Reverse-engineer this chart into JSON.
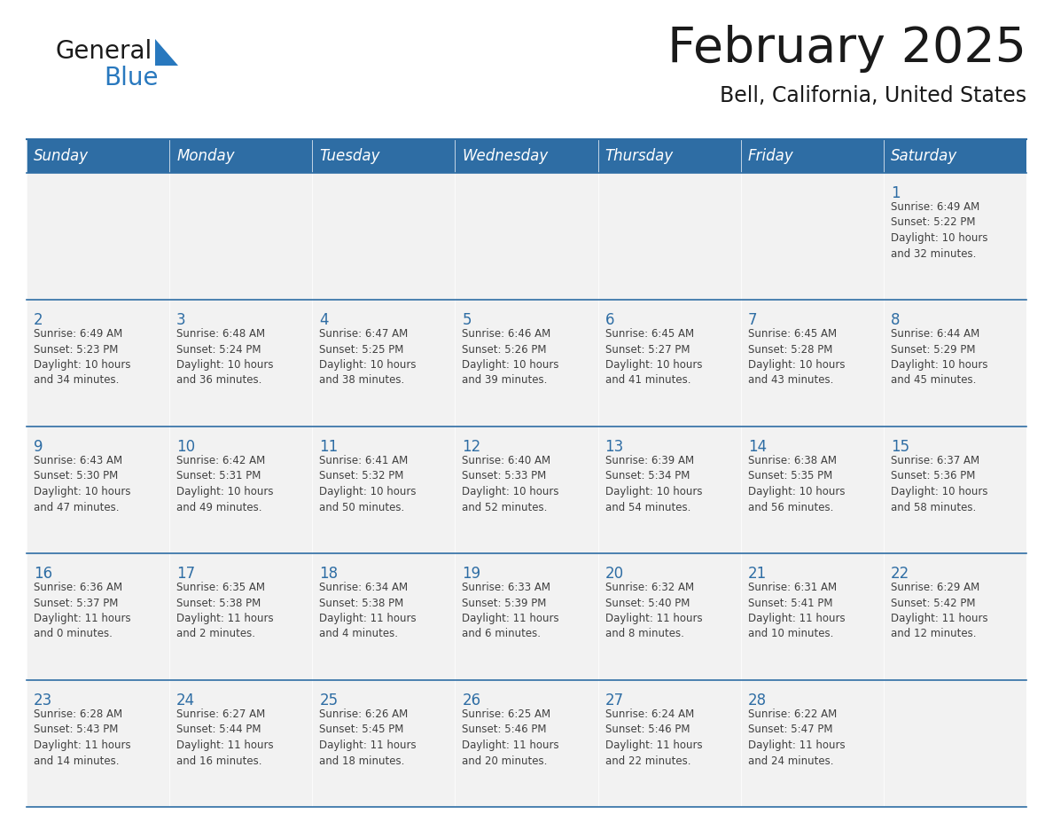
{
  "title": "February 2025",
  "subtitle": "Bell, California, United States",
  "days_of_week": [
    "Sunday",
    "Monday",
    "Tuesday",
    "Wednesday",
    "Thursday",
    "Friday",
    "Saturday"
  ],
  "header_bg": "#2E6DA4",
  "header_text": "#FFFFFF",
  "cell_bg": "#F2F2F2",
  "day_number_color": "#2E6DA4",
  "info_text_color": "#404040",
  "border_color": "#2E6DA4",
  "logo_general_color": "#1a1a1a",
  "logo_blue_color": "#2878BE",
  "logo_triangle_color": "#2878BE",
  "title_color": "#1a1a1a",
  "calendar_data": [
    [
      null,
      null,
      null,
      null,
      null,
      null,
      {
        "day": 1,
        "sunrise": "6:49 AM",
        "sunset": "5:22 PM",
        "daylight": "10 hours and 32 minutes."
      }
    ],
    [
      {
        "day": 2,
        "sunrise": "6:49 AM",
        "sunset": "5:23 PM",
        "daylight": "10 hours and 34 minutes."
      },
      {
        "day": 3,
        "sunrise": "6:48 AM",
        "sunset": "5:24 PM",
        "daylight": "10 hours and 36 minutes."
      },
      {
        "day": 4,
        "sunrise": "6:47 AM",
        "sunset": "5:25 PM",
        "daylight": "10 hours and 38 minutes."
      },
      {
        "day": 5,
        "sunrise": "6:46 AM",
        "sunset": "5:26 PM",
        "daylight": "10 hours and 39 minutes."
      },
      {
        "day": 6,
        "sunrise": "6:45 AM",
        "sunset": "5:27 PM",
        "daylight": "10 hours and 41 minutes."
      },
      {
        "day": 7,
        "sunrise": "6:45 AM",
        "sunset": "5:28 PM",
        "daylight": "10 hours and 43 minutes."
      },
      {
        "day": 8,
        "sunrise": "6:44 AM",
        "sunset": "5:29 PM",
        "daylight": "10 hours and 45 minutes."
      }
    ],
    [
      {
        "day": 9,
        "sunrise": "6:43 AM",
        "sunset": "5:30 PM",
        "daylight": "10 hours and 47 minutes."
      },
      {
        "day": 10,
        "sunrise": "6:42 AM",
        "sunset": "5:31 PM",
        "daylight": "10 hours and 49 minutes."
      },
      {
        "day": 11,
        "sunrise": "6:41 AM",
        "sunset": "5:32 PM",
        "daylight": "10 hours and 50 minutes."
      },
      {
        "day": 12,
        "sunrise": "6:40 AM",
        "sunset": "5:33 PM",
        "daylight": "10 hours and 52 minutes."
      },
      {
        "day": 13,
        "sunrise": "6:39 AM",
        "sunset": "5:34 PM",
        "daylight": "10 hours and 54 minutes."
      },
      {
        "day": 14,
        "sunrise": "6:38 AM",
        "sunset": "5:35 PM",
        "daylight": "10 hours and 56 minutes."
      },
      {
        "day": 15,
        "sunrise": "6:37 AM",
        "sunset": "5:36 PM",
        "daylight": "10 hours and 58 minutes."
      }
    ],
    [
      {
        "day": 16,
        "sunrise": "6:36 AM",
        "sunset": "5:37 PM",
        "daylight": "11 hours and 0 minutes."
      },
      {
        "day": 17,
        "sunrise": "6:35 AM",
        "sunset": "5:38 PM",
        "daylight": "11 hours and 2 minutes."
      },
      {
        "day": 18,
        "sunrise": "6:34 AM",
        "sunset": "5:38 PM",
        "daylight": "11 hours and 4 minutes."
      },
      {
        "day": 19,
        "sunrise": "6:33 AM",
        "sunset": "5:39 PM",
        "daylight": "11 hours and 6 minutes."
      },
      {
        "day": 20,
        "sunrise": "6:32 AM",
        "sunset": "5:40 PM",
        "daylight": "11 hours and 8 minutes."
      },
      {
        "day": 21,
        "sunrise": "6:31 AM",
        "sunset": "5:41 PM",
        "daylight": "11 hours and 10 minutes."
      },
      {
        "day": 22,
        "sunrise": "6:29 AM",
        "sunset": "5:42 PM",
        "daylight": "11 hours and 12 minutes."
      }
    ],
    [
      {
        "day": 23,
        "sunrise": "6:28 AM",
        "sunset": "5:43 PM",
        "daylight": "11 hours and 14 minutes."
      },
      {
        "day": 24,
        "sunrise": "6:27 AM",
        "sunset": "5:44 PM",
        "daylight": "11 hours and 16 minutes."
      },
      {
        "day": 25,
        "sunrise": "6:26 AM",
        "sunset": "5:45 PM",
        "daylight": "11 hours and 18 minutes."
      },
      {
        "day": 26,
        "sunrise": "6:25 AM",
        "sunset": "5:46 PM",
        "daylight": "11 hours and 20 minutes."
      },
      {
        "day": 27,
        "sunrise": "6:24 AM",
        "sunset": "5:46 PM",
        "daylight": "11 hours and 22 minutes."
      },
      {
        "day": 28,
        "sunrise": "6:22 AM",
        "sunset": "5:47 PM",
        "daylight": "11 hours and 24 minutes."
      },
      null
    ]
  ]
}
